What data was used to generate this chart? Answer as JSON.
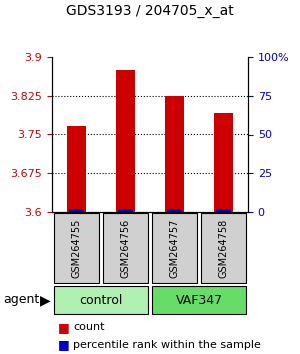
{
  "title": "GDS3193 / 204705_x_at",
  "samples": [
    "GSM264755",
    "GSM264756",
    "GSM264757",
    "GSM264758"
  ],
  "red_values": [
    3.767,
    3.874,
    3.824,
    3.792
  ],
  "blue_values": [
    3.602,
    3.602,
    3.602,
    3.602
  ],
  "ylim_left": [
    3.6,
    3.9
  ],
  "ylim_right": [
    0,
    100
  ],
  "yticks_left": [
    3.6,
    3.675,
    3.75,
    3.825,
    3.9
  ],
  "ytick_labels_left": [
    "3.6",
    "3.675",
    "3.75",
    "3.825",
    "3.9"
  ],
  "yticks_right": [
    0,
    25,
    50,
    75,
    100
  ],
  "ytick_labels_right": [
    "0",
    "25",
    "50",
    "75",
    "100%"
  ],
  "gridlines": [
    3.675,
    3.75,
    3.825
  ],
  "groups": [
    {
      "label": "control",
      "samples": [
        0,
        1
      ],
      "color": "#b0f0b0"
    },
    {
      "label": "VAF347",
      "samples": [
        2,
        3
      ],
      "color": "#66dd66"
    }
  ],
  "group_row_label": "agent",
  "bar_width": 0.4,
  "red_color": "#cc0000",
  "blue_color": "#0000cc",
  "left_tick_color": "#cc0000",
  "right_tick_color": "#0000cc",
  "legend_red_label": "count",
  "legend_blue_label": "percentile rank within the sample",
  "bg_color": "#f0f0f0"
}
